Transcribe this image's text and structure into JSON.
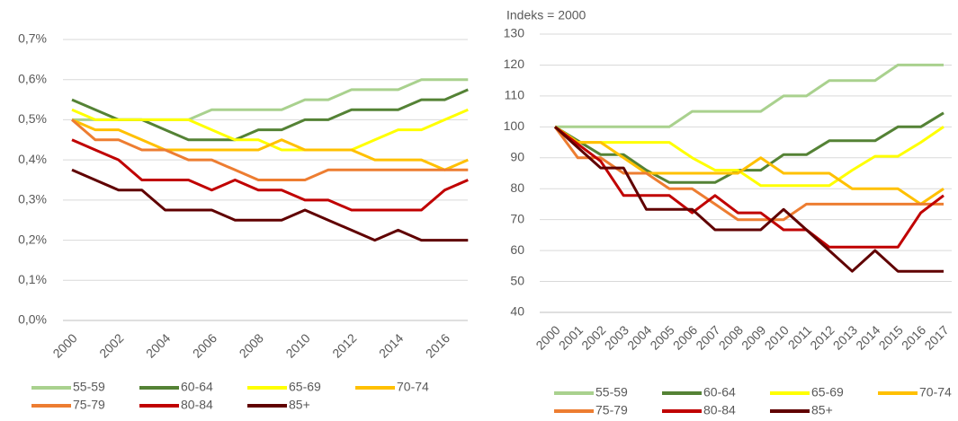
{
  "chart_data": [
    {
      "type": "line",
      "legend": "bottom",
      "grid": true,
      "categories": [
        "2000",
        null,
        "2002",
        null,
        "2004",
        null,
        "2006",
        null,
        "2008",
        null,
        "2010",
        null,
        "2012",
        null,
        "2014",
        null,
        "2016",
        null
      ],
      "ylim": [
        0,
        0.7
      ],
      "yticks": [
        {
          "value": 0,
          "label": "0,0%"
        },
        {
          "value": 0.1,
          "label": "0,1%"
        },
        {
          "value": 0.2,
          "label": "0,2%"
        },
        {
          "value": 0.3,
          "label": "0,3%"
        },
        {
          "value": 0.4,
          "label": "0,4%"
        },
        {
          "value": 0.5,
          "label": "0,5%"
        },
        {
          "value": 0.6,
          "label": "0,6%"
        },
        {
          "value": 0.7,
          "label": "0,7%"
        }
      ],
      "series": [
        {
          "name": "55-59",
          "color": "#a9d18e",
          "values": [
            0.5,
            0.5,
            0.5,
            0.5,
            0.5,
            0.5,
            0.525,
            0.525,
            0.525,
            0.525,
            0.55,
            0.55,
            0.575,
            0.575,
            0.575,
            0.6,
            0.6,
            0.6
          ]
        },
        {
          "name": "60-64",
          "color": "#548235",
          "values": [
            0.55,
            0.525,
            0.5,
            0.5,
            0.475,
            0.45,
            0.45,
            0.45,
            0.475,
            0.475,
            0.5,
            0.5,
            0.525,
            0.525,
            0.525,
            0.55,
            0.55,
            0.575
          ]
        },
        {
          "name": "65-69",
          "color": "#ffff00",
          "values": [
            0.525,
            0.5,
            0.5,
            0.5,
            0.5,
            0.5,
            0.475,
            0.45,
            0.45,
            0.425,
            0.425,
            0.425,
            0.425,
            0.45,
            0.475,
            0.475,
            0.5,
            0.525
          ]
        },
        {
          "name": "70-74",
          "color": "#ffc000",
          "values": [
            0.5,
            0.475,
            0.475,
            0.45,
            0.425,
            0.425,
            0.425,
            0.425,
            0.425,
            0.45,
            0.425,
            0.425,
            0.425,
            0.4,
            0.4,
            0.4,
            0.375,
            0.4
          ]
        },
        {
          "name": "75-79",
          "color": "#ed7d31",
          "values": [
            0.5,
            0.45,
            0.45,
            0.425,
            0.425,
            0.4,
            0.4,
            0.375,
            0.35,
            0.35,
            0.35,
            0.375,
            0.375,
            0.375,
            0.375,
            0.375,
            0.375,
            0.375
          ]
        },
        {
          "name": "80-84",
          "color": "#c00000",
          "values": [
            0.45,
            0.425,
            0.4,
            0.35,
            0.35,
            0.35,
            0.325,
            0.35,
            0.325,
            0.325,
            0.3,
            0.3,
            0.275,
            0.275,
            0.275,
            0.275,
            0.325,
            0.35
          ]
        },
        {
          "name": "85+",
          "color": "#600000",
          "values": [
            0.375,
            0.35,
            0.325,
            0.325,
            0.275,
            0.275,
            0.275,
            0.25,
            0.25,
            0.25,
            0.275,
            0.25,
            0.225,
            0.2,
            0.225,
            0.2,
            0.2,
            0.2
          ]
        }
      ]
    },
    {
      "type": "line",
      "legend": "bottom",
      "grid": true,
      "subtitle": "Indeks = 2000",
      "categories": [
        "2000",
        "2001",
        "2002",
        "2003",
        "2004",
        "2005",
        "2006",
        "2007",
        "2008",
        "2009",
        "2010",
        "2011",
        "2012",
        "2013",
        "2014",
        "2015",
        "2016",
        "2017"
      ],
      "ylim": [
        40,
        130
      ],
      "yticks": [
        40,
        50,
        60,
        70,
        80,
        90,
        100,
        110,
        120,
        130
      ],
      "series": [
        {
          "name": "55-59",
          "color": "#a9d18e",
          "values": [
            100,
            100,
            100,
            100,
            100,
            100,
            105,
            105,
            105,
            105,
            110,
            110,
            115,
            115,
            115,
            120,
            120,
            120
          ]
        },
        {
          "name": "60-64",
          "color": "#548235",
          "values": [
            100,
            95.5,
            91,
            91,
            86,
            82,
            82,
            82,
            86,
            86,
            91,
            91,
            95.5,
            95.5,
            95.5,
            100,
            100,
            104.5
          ]
        },
        {
          "name": "65-69",
          "color": "#ffff00",
          "values": [
            100,
            95,
            95,
            95,
            95,
            95,
            90,
            86,
            86,
            81,
            81,
            81,
            81,
            86,
            90.5,
            90.5,
            95,
            100
          ]
        },
        {
          "name": "70-74",
          "color": "#ffc000",
          "values": [
            100,
            95,
            95,
            90,
            85,
            85,
            85,
            85,
            85,
            90,
            85,
            85,
            85,
            80,
            80,
            80,
            75,
            80
          ]
        },
        {
          "name": "75-79",
          "color": "#ed7d31",
          "values": [
            100,
            90,
            90,
            85,
            85,
            80,
            80,
            75,
            70,
            70,
            70,
            75,
            75,
            75,
            75,
            75,
            75,
            75
          ]
        },
        {
          "name": "80-84",
          "color": "#c00000",
          "values": [
            100,
            94.4,
            88.9,
            77.8,
            77.8,
            77.8,
            72.2,
            77.8,
            72.2,
            72.2,
            66.7,
            66.7,
            61.1,
            61.1,
            61.1,
            61.1,
            72.2,
            77.8
          ]
        },
        {
          "name": "85+",
          "color": "#600000",
          "values": [
            100,
            93.3,
            86.7,
            86.7,
            73.3,
            73.3,
            73.3,
            66.7,
            66.7,
            66.7,
            73.3,
            66.7,
            60,
            53.3,
            60,
            53.3,
            53.3,
            53.3
          ]
        }
      ]
    }
  ]
}
